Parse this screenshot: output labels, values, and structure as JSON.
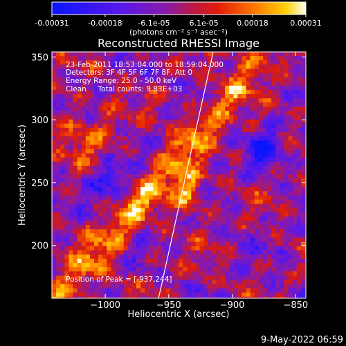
{
  "chart_data": {
    "type": "heatmap",
    "title": "Reconstructed RHESSI Image",
    "xlabel": "Heliocentric X (arcsec)",
    "ylabel": "Heliocentric Y (arcsec)",
    "xlim": [
      -1042,
      -842
    ],
    "ylim": [
      158,
      354
    ],
    "xticks": [
      -1000,
      -950,
      -900,
      -850
    ],
    "yticks": [
      200,
      250,
      300,
      350
    ],
    "colorbar": {
      "min": -0.00031,
      "max": 0.00031,
      "tick_values": [
        -0.00031,
        -0.00018,
        -6.1e-05,
        6.1e-05,
        0.00018,
        0.00031
      ],
      "tick_labels": [
        "-0.00031",
        "-0.00018",
        "-6.1e-05",
        "6.1e-05",
        "0.00018",
        "0.00031"
      ],
      "units_label": "(photons cm⁻² s⁻¹ asec⁻²)"
    },
    "annotations": {
      "time_range": "23-Feb-2011 18:53:04.000 to 18:59:04.000",
      "detectors": "Detectors: 3F 4F 5F 6F 7F 8F, Att 0",
      "energy_range": "Energy Range: 25.0 - 50.0 keV",
      "algorithm": "Clean     Total counts: 9.83E+03",
      "peak": "Position of Peak = [-937,244]"
    },
    "peak": [
      -937,
      244
    ],
    "limb_line": [
      [
        -958,
        158
      ],
      [
        -915,
        354
      ]
    ],
    "grid": false
  },
  "footer": {
    "date": "9-May-2022 06:59"
  }
}
